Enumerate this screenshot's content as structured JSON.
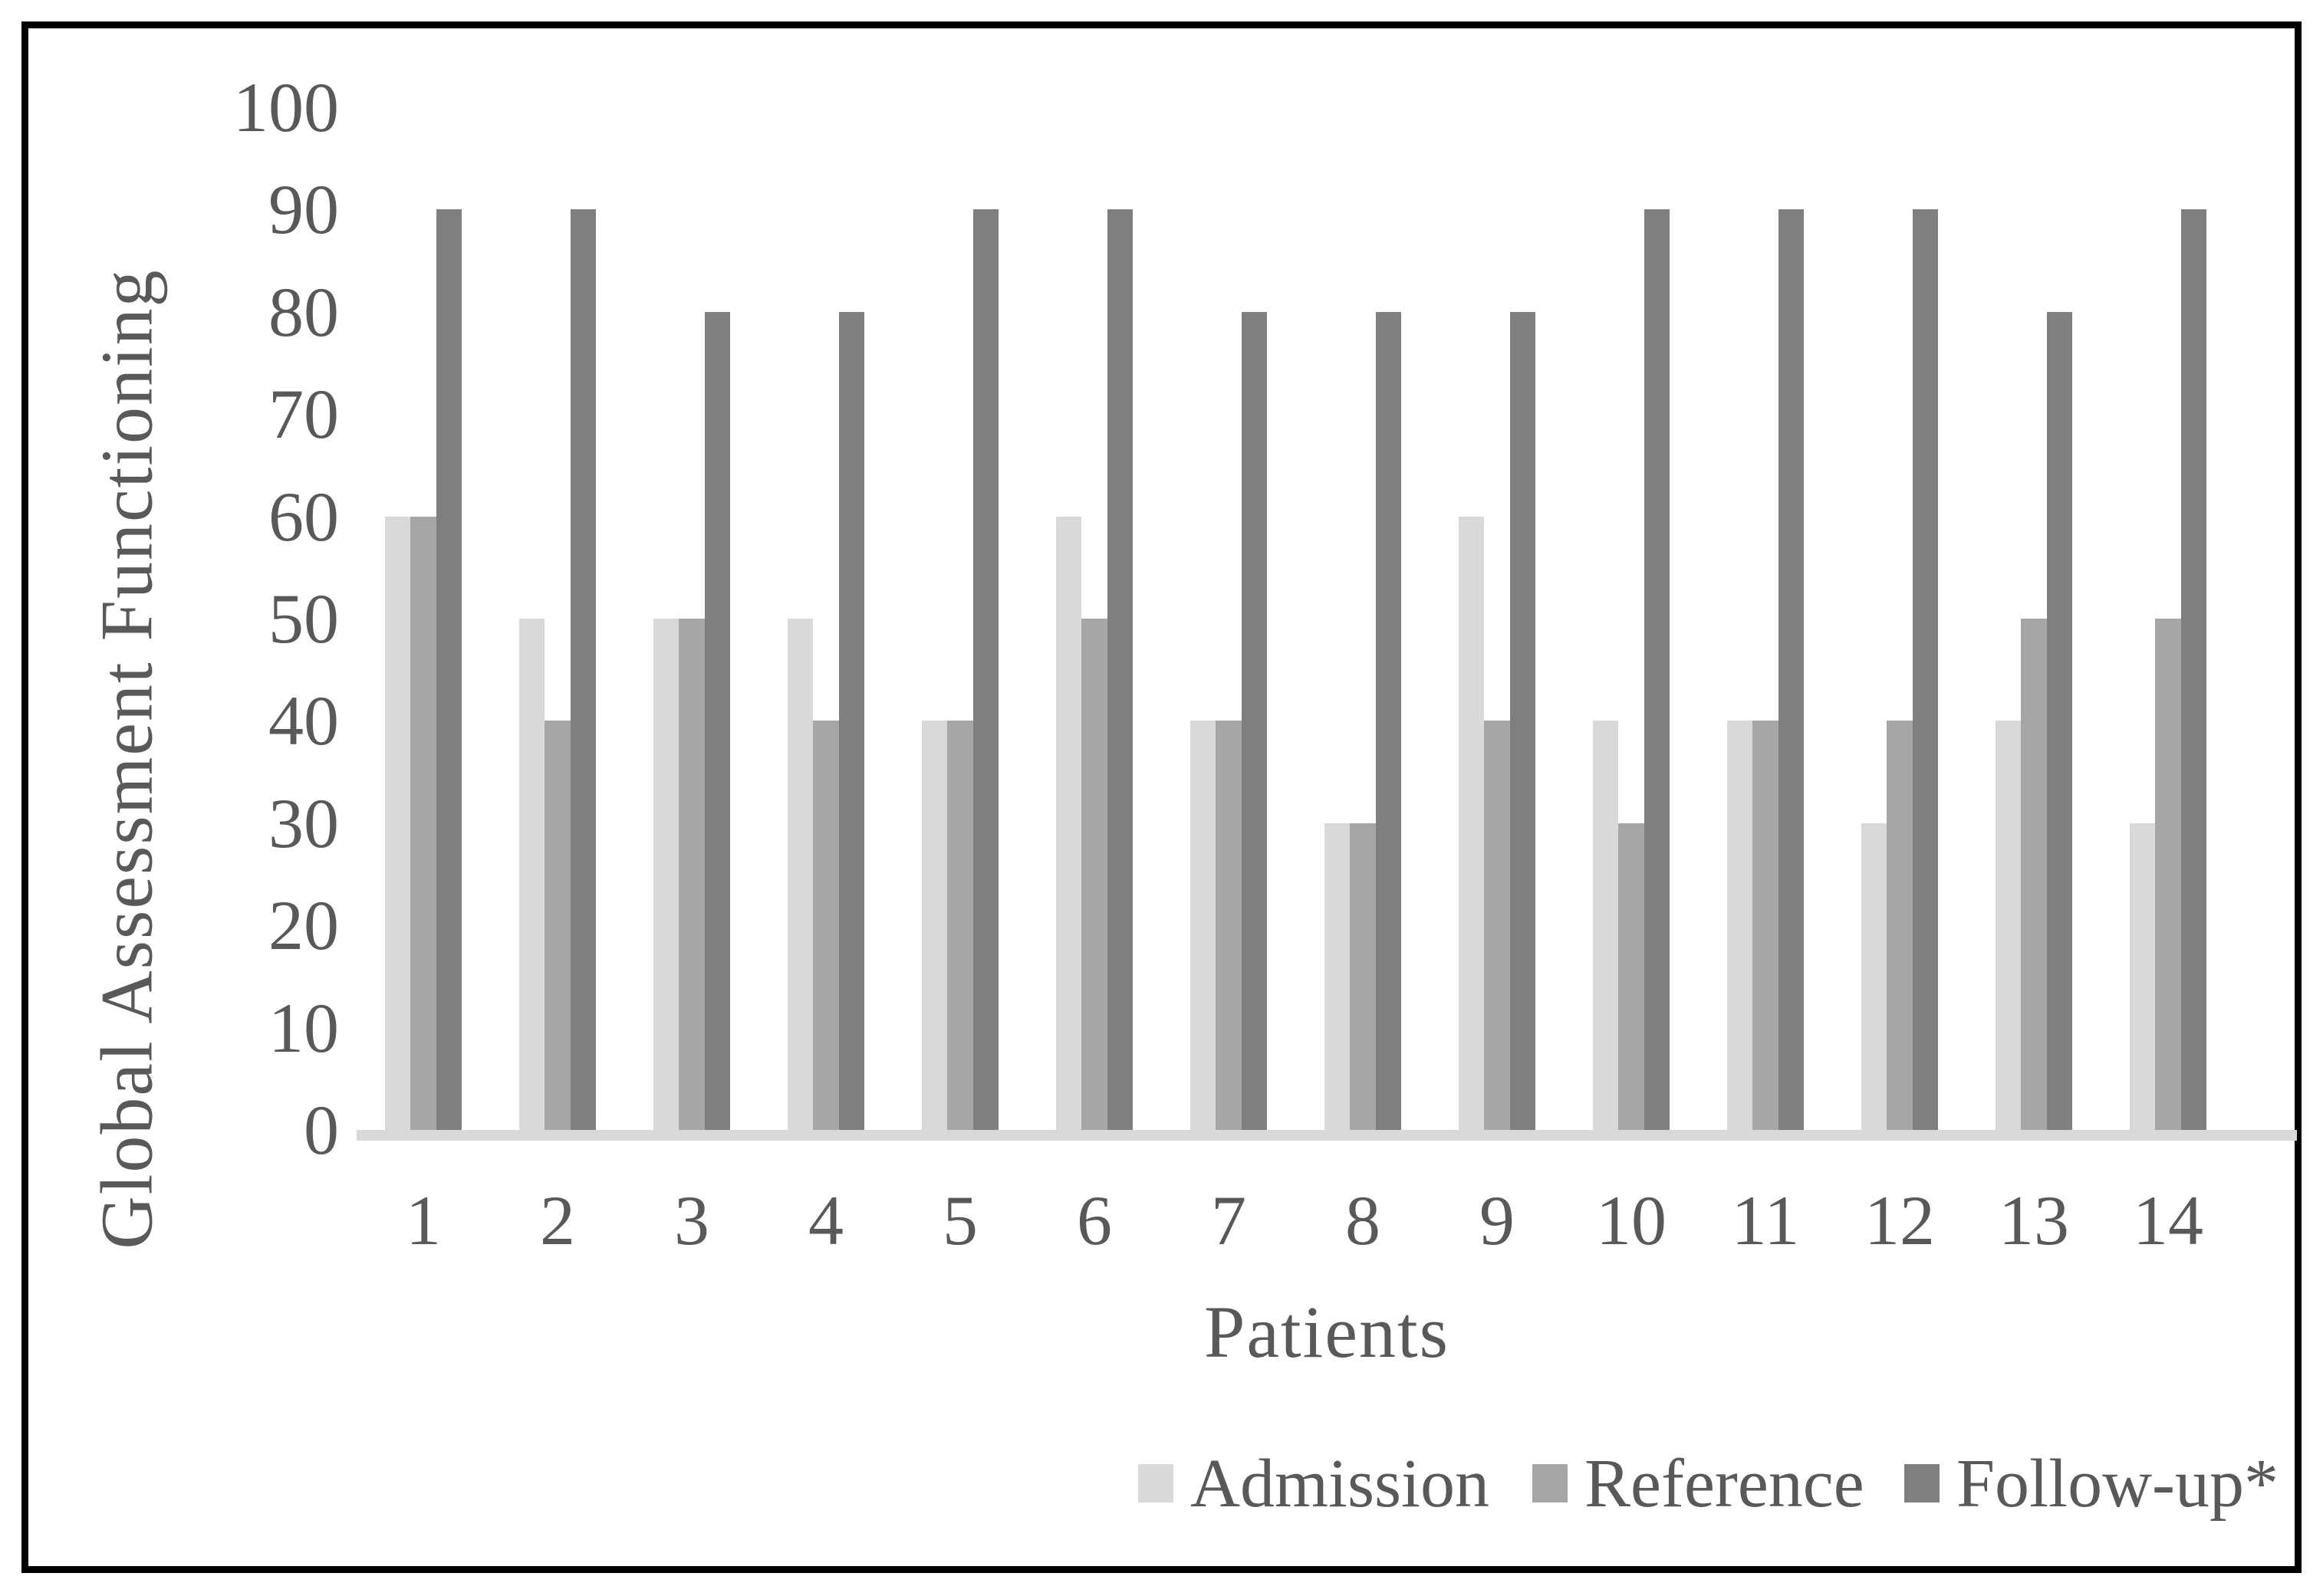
{
  "figure": {
    "border_color": "#000000",
    "background": "#ffffff",
    "text_color": "#595959"
  },
  "chart_data": {
    "type": "bar",
    "title": "",
    "xlabel": "Patients",
    "ylabel": "Global Assessment Functioning",
    "categories": [
      "1",
      "2",
      "3",
      "4",
      "5",
      "6",
      "7",
      "8",
      "9",
      "10",
      "11",
      "12",
      "13",
      "14"
    ],
    "series": [
      {
        "name": "Admission",
        "color": "#d9d9d9",
        "values": [
          60,
          50,
          50,
          50,
          40,
          60,
          40,
          30,
          60,
          40,
          40,
          30,
          40,
          30
        ]
      },
      {
        "name": "Reference",
        "color": "#a6a6a6",
        "values": [
          60,
          40,
          50,
          40,
          40,
          50,
          40,
          30,
          40,
          30,
          40,
          40,
          50,
          50
        ]
      },
      {
        "name": "Follow-up*",
        "color": "#7f7f7f",
        "values": [
          90,
          90,
          80,
          80,
          90,
          90,
          80,
          80,
          80,
          90,
          90,
          90,
          80,
          90
        ]
      }
    ],
    "ylim": [
      0,
      100
    ],
    "ytick_step": 10,
    "ytick_labels": [
      "0",
      "10",
      "20",
      "30",
      "40",
      "50",
      "60",
      "70",
      "80",
      "90",
      "100"
    ],
    "grid": false,
    "legend_position": "bottom-right",
    "axis_line_color": "#d9d9d9"
  }
}
